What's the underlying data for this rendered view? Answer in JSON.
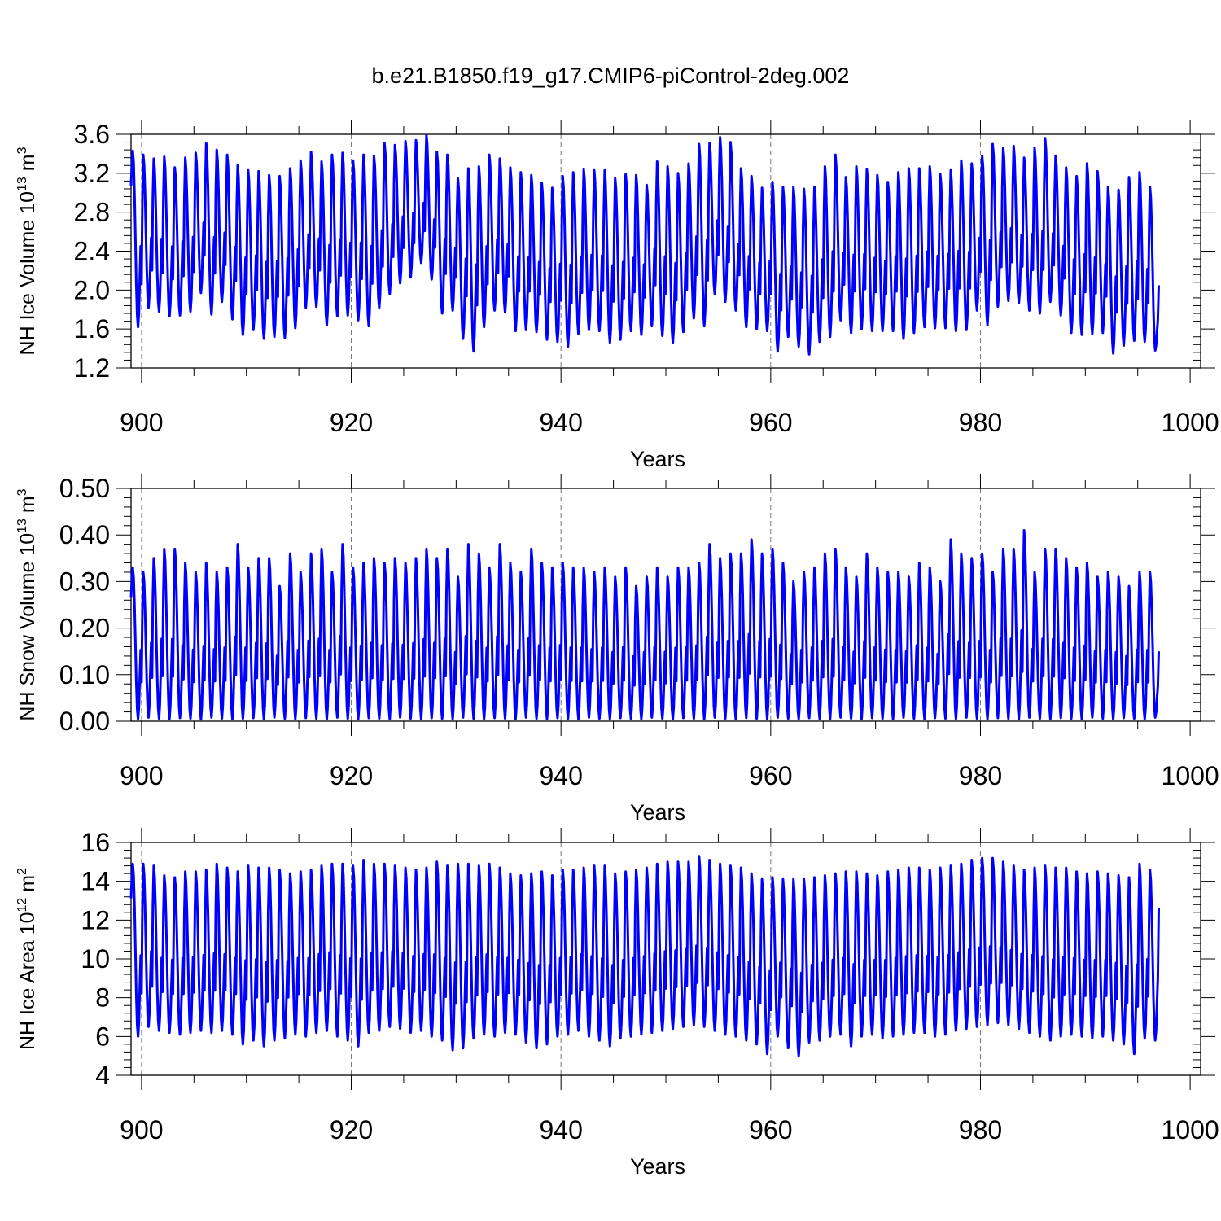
{
  "figure_title": "b.e21.B1850.f19_g17.CMIP6-piControl-2deg.002",
  "line_color": "#0000ff",
  "chart_data": [
    {
      "type": "line",
      "title": "",
      "xlabel": "Years",
      "ylabel_prefix": "NH Ice Volume 10",
      "ylabel_exp": "13",
      "ylabel_unit": " m",
      "ylabel_unit_exp": "3",
      "xlim": [
        899,
        1001
      ],
      "ylim": [
        1.2,
        3.6
      ],
      "xticks": [
        900,
        920,
        940,
        960,
        980,
        1000
      ],
      "yticks": [
        1.2,
        1.6,
        2.0,
        2.4,
        2.8,
        3.2,
        3.6
      ],
      "ytick_labels": [
        "1.2",
        "1.6",
        "2.0",
        "2.4",
        "2.8",
        "3.2",
        "3.6"
      ],
      "grid_x": [
        900,
        920,
        940,
        960,
        980
      ],
      "series": [
        {
          "name": "NH Ice Volume",
          "x_start": 899,
          "annual_max": [
            3.43,
            3.39,
            3.35,
            3.37,
            3.26,
            3.36,
            3.41,
            3.51,
            3.44,
            3.39,
            3.28,
            3.23,
            3.22,
            3.18,
            3.17,
            3.25,
            3.33,
            3.42,
            3.32,
            3.39,
            3.41,
            3.33,
            3.39,
            3.38,
            3.51,
            3.49,
            3.53,
            3.54,
            3.59,
            3.42,
            3.39,
            3.15,
            3.25,
            3.27,
            3.39,
            3.35,
            3.26,
            3.21,
            3.18,
            3.1,
            3.05,
            3.17,
            3.21,
            3.24,
            3.23,
            3.23,
            3.15,
            3.19,
            3.18,
            3.08,
            3.32,
            3.27,
            3.2,
            3.3,
            3.5,
            3.51,
            3.57,
            3.52,
            3.25,
            3.17,
            3.05,
            3.11,
            3.06,
            3.06,
            3.04,
            3.06,
            3.27,
            3.39,
            3.16,
            3.27,
            3.24,
            3.18,
            3.11,
            3.21,
            3.25,
            3.25,
            3.27,
            3.19,
            3.23,
            3.33,
            3.3,
            3.38,
            3.5,
            3.46,
            3.48,
            3.36,
            3.46,
            3.56,
            3.38,
            3.26,
            3.17,
            3.3,
            3.22,
            3.06,
            3.03,
            3.16,
            3.21,
            3.06
          ],
          "annual_min": [
            1.62,
            1.82,
            1.78,
            1.73,
            1.74,
            1.78,
            1.97,
            1.75,
            1.88,
            1.7,
            1.54,
            1.59,
            1.5,
            1.52,
            1.51,
            1.61,
            1.82,
            1.83,
            1.64,
            1.73,
            1.74,
            1.69,
            1.63,
            1.82,
            1.96,
            2.07,
            2.13,
            2.28,
            2.11,
            1.76,
            1.79,
            1.5,
            1.37,
            1.62,
            1.79,
            1.77,
            1.58,
            1.59,
            1.57,
            1.49,
            1.47,
            1.42,
            1.55,
            1.59,
            1.58,
            1.46,
            1.49,
            1.58,
            1.54,
            1.63,
            1.53,
            1.46,
            1.57,
            1.71,
            1.63,
            1.96,
            1.88,
            1.79,
            1.62,
            1.6,
            1.58,
            1.37,
            1.52,
            1.42,
            1.34,
            1.47,
            1.52,
            1.69,
            1.56,
            1.6,
            1.58,
            1.58,
            1.58,
            1.5,
            1.56,
            1.62,
            1.61,
            1.61,
            1.58,
            1.59,
            1.79,
            1.64,
            1.83,
            1.89,
            1.87,
            1.79,
            1.76,
            1.88,
            1.74,
            1.56,
            1.54,
            1.55,
            1.56,
            1.35,
            1.43,
            1.48,
            1.47,
            1.38
          ],
          "final_value": 2.05
        }
      ]
    },
    {
      "type": "line",
      "title": "",
      "xlabel": "Years",
      "ylabel_prefix": "NH Snow Volume 10",
      "ylabel_exp": "13",
      "ylabel_unit": " m",
      "ylabel_unit_exp": "3",
      "xlim": [
        899,
        1001
      ],
      "ylim": [
        0.0,
        0.5
      ],
      "xticks": [
        900,
        920,
        940,
        960,
        980,
        1000
      ],
      "yticks": [
        0.0,
        0.1,
        0.2,
        0.3,
        0.4,
        0.5
      ],
      "ytick_labels": [
        "0.00",
        "0.10",
        "0.20",
        "0.30",
        "0.40",
        "0.50"
      ],
      "grid_x": [
        900,
        920,
        940,
        960,
        980
      ],
      "series": [
        {
          "name": "NH Snow Volume",
          "x_start": 899,
          "annual_max": [
            0.33,
            0.32,
            0.35,
            0.37,
            0.37,
            0.34,
            0.32,
            0.34,
            0.32,
            0.33,
            0.38,
            0.33,
            0.35,
            0.35,
            0.29,
            0.36,
            0.32,
            0.36,
            0.37,
            0.32,
            0.38,
            0.33,
            0.34,
            0.35,
            0.34,
            0.35,
            0.34,
            0.35,
            0.37,
            0.35,
            0.37,
            0.31,
            0.38,
            0.36,
            0.33,
            0.38,
            0.34,
            0.32,
            0.37,
            0.34,
            0.33,
            0.34,
            0.33,
            0.33,
            0.32,
            0.33,
            0.31,
            0.33,
            0.29,
            0.31,
            0.33,
            0.31,
            0.33,
            0.33,
            0.34,
            0.38,
            0.35,
            0.36,
            0.36,
            0.39,
            0.36,
            0.37,
            0.34,
            0.3,
            0.32,
            0.33,
            0.36,
            0.37,
            0.33,
            0.31,
            0.36,
            0.33,
            0.32,
            0.32,
            0.31,
            0.34,
            0.33,
            0.3,
            0.39,
            0.36,
            0.35,
            0.36,
            0.32,
            0.37,
            0.37,
            0.41,
            0.32,
            0.37,
            0.37,
            0.35,
            0.33,
            0.34,
            0.31,
            0.32,
            0.31,
            0.29,
            0.32,
            0.32
          ],
          "annual_min": [
            0.005,
            0.008,
            0.006,
            0.005,
            0.007,
            0.006,
            0.004,
            0.008,
            0.006,
            0.005,
            0.006,
            0.007,
            0.005,
            0.008,
            0.006,
            0.005,
            0.007,
            0.006,
            0.005,
            0.008,
            0.006,
            0.005,
            0.007,
            0.006,
            0.005,
            0.008,
            0.006,
            0.005,
            0.007,
            0.006,
            0.005,
            0.008,
            0.006,
            0.005,
            0.007,
            0.006,
            0.005,
            0.008,
            0.006,
            0.005,
            0.007,
            0.006,
            0.005,
            0.008,
            0.006,
            0.005,
            0.007,
            0.006,
            0.005,
            0.008,
            0.006,
            0.005,
            0.007,
            0.006,
            0.005,
            0.008,
            0.006,
            0.005,
            0.007,
            0.006,
            0.005,
            0.008,
            0.006,
            0.005,
            0.007,
            0.006,
            0.005,
            0.008,
            0.006,
            0.005,
            0.007,
            0.006,
            0.005,
            0.008,
            0.006,
            0.005,
            0.007,
            0.006,
            0.005,
            0.008,
            0.006,
            0.005,
            0.007,
            0.006,
            0.005,
            0.008,
            0.006,
            0.005,
            0.007,
            0.006,
            0.005,
            0.008,
            0.006,
            0.005,
            0.007,
            0.006,
            0.005,
            0.008
          ],
          "final_value": 0.15
        }
      ]
    },
    {
      "type": "line",
      "title": "",
      "xlabel": "Years",
      "ylabel_prefix": "NH Ice Area 10",
      "ylabel_exp": "12",
      "ylabel_unit": " m",
      "ylabel_unit_exp": "2",
      "xlim": [
        899,
        1001
      ],
      "ylim": [
        4,
        16
      ],
      "xticks": [
        900,
        920,
        940,
        960,
        980,
        1000
      ],
      "yticks": [
        4,
        6,
        8,
        10,
        12,
        14,
        16
      ],
      "ytick_labels": [
        "4",
        "6",
        "8",
        "10",
        "12",
        "14",
        "16"
      ],
      "grid_x": [
        900,
        920,
        940,
        960,
        980
      ],
      "series": [
        {
          "name": "NH Ice Area",
          "x_start": 899,
          "annual_max": [
            14.9,
            14.9,
            14.8,
            14.3,
            14.2,
            14.5,
            14.5,
            14.6,
            14.9,
            14.7,
            14.5,
            14.8,
            14.7,
            14.7,
            14.6,
            14.4,
            14.5,
            14.6,
            14.8,
            14.9,
            14.9,
            14.8,
            15.1,
            14.9,
            14.9,
            14.8,
            14.7,
            14.6,
            14.7,
            15.0,
            14.8,
            14.9,
            14.9,
            14.8,
            14.9,
            14.7,
            14.4,
            14.3,
            14.4,
            14.5,
            14.3,
            14.6,
            14.6,
            14.7,
            14.8,
            14.8,
            14.4,
            14.5,
            14.6,
            14.7,
            14.9,
            15.0,
            15.0,
            15.0,
            15.3,
            15.1,
            14.9,
            14.8,
            14.7,
            14.4,
            14.1,
            14.2,
            14.1,
            14.1,
            14.1,
            14.2,
            14.3,
            14.4,
            14.5,
            14.5,
            14.4,
            14.3,
            14.5,
            14.6,
            14.7,
            14.7,
            14.6,
            14.7,
            14.8,
            14.9,
            15.1,
            15.2,
            15.2,
            15.0,
            14.8,
            14.6,
            14.7,
            14.8,
            14.7,
            14.7,
            14.5,
            14.4,
            14.5,
            14.4,
            14.3,
            14.2,
            14.9,
            14.6
          ],
          "annual_min": [
            6.0,
            6.5,
            6.3,
            6.2,
            6.1,
            6.2,
            6.3,
            6.2,
            6.3,
            6.1,
            5.6,
            5.8,
            5.5,
            5.8,
            5.9,
            6.1,
            6.0,
            6.2,
            6.3,
            6.0,
            5.8,
            5.5,
            6.2,
            6.3,
            6.5,
            6.4,
            6.2,
            6.3,
            6.0,
            5.8,
            5.3,
            5.4,
            5.9,
            6.1,
            6.0,
            6.2,
            6.1,
            5.7,
            5.4,
            5.6,
            6.0,
            6.1,
            6.3,
            6.0,
            5.8,
            5.5,
            5.9,
            6.0,
            6.1,
            6.2,
            6.3,
            6.4,
            6.5,
            6.6,
            6.5,
            6.3,
            6.1,
            6.0,
            5.8,
            5.6,
            5.1,
            6.0,
            5.4,
            5.0,
            5.7,
            5.8,
            6.0,
            6.1,
            5.5,
            6.0,
            6.1,
            5.9,
            6.0,
            6.1,
            6.2,
            6.2,
            6.0,
            6.1,
            6.3,
            6.4,
            6.5,
            6.6,
            6.7,
            6.6,
            6.4,
            6.2,
            6.0,
            5.8,
            6.0,
            6.1,
            6.0,
            5.9,
            6.0,
            5.8,
            5.6,
            5.1,
            5.9,
            5.8
          ],
          "final_value": 12.6
        }
      ]
    }
  ]
}
